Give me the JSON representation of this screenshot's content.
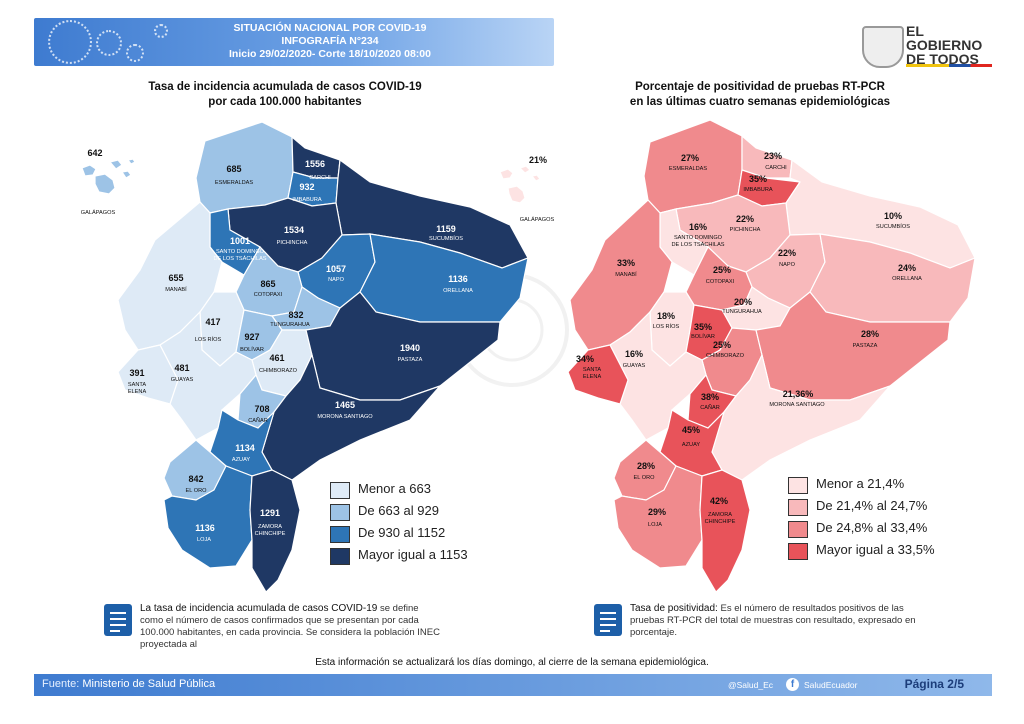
{
  "header": {
    "line1": "SITUACIÓN NACIONAL POR  COVID-19",
    "line2": "INFOGRAFÍA N°234",
    "line3": "Inicio 29/02/2020- Corte 18/10/2020 08:00"
  },
  "logo": {
    "line1": "EL",
    "line2": "GOBIERNO",
    "line3": "DE TODOS"
  },
  "left_map": {
    "title_line1": "Tasa de incidencia acumulada de casos COVID-19",
    "title_line2": "por cada 100.000 habitantes",
    "colors": {
      "c1": "#deeaf6",
      "c2": "#9dc3e6",
      "c3": "#2e75b6",
      "c4": "#1f3864"
    },
    "legend": [
      {
        "label": "Menor a 663",
        "color": "#deeaf6"
      },
      {
        "label": "De 663 al 929",
        "color": "#9dc3e6"
      },
      {
        "label": "De 930 al 1152",
        "color": "#2e75b6"
      },
      {
        "label": "Mayor igual a 1153",
        "color": "#1f3864"
      }
    ],
    "provinces": [
      {
        "name": "GALÁPAGOS",
        "value": "642"
      },
      {
        "name": "ESMERALDAS",
        "value": "685"
      },
      {
        "name": "CARCHI",
        "value": "1556"
      },
      {
        "name": "IMBABURA",
        "value": "932"
      },
      {
        "name": "PICHINCHA",
        "value": "1534"
      },
      {
        "name": "SUCUMBÍOS",
        "value": "1159"
      },
      {
        "name": "SANTO DOMINGO DE LOS TSÁCHILAS",
        "value": "1001"
      },
      {
        "name": "MANABÍ",
        "value": "655"
      },
      {
        "name": "COTOPAXI",
        "value": "865"
      },
      {
        "name": "NAPO",
        "value": "1057"
      },
      {
        "name": "ORELLANA",
        "value": "1136"
      },
      {
        "name": "TUNGURAHUA",
        "value": "832"
      },
      {
        "name": "LOS RÍOS",
        "value": "417"
      },
      {
        "name": "BOLÍVAR",
        "value": "927"
      },
      {
        "name": "CHIMBORAZO",
        "value": "461"
      },
      {
        "name": "PASTAZA",
        "value": "1940"
      },
      {
        "name": "GUAYAS",
        "value": "481"
      },
      {
        "name": "SANTA ELENA",
        "value": "391"
      },
      {
        "name": "CAÑAR",
        "value": "708"
      },
      {
        "name": "MORONA SANTIAGO",
        "value": "1465"
      },
      {
        "name": "AZUAY",
        "value": "1134"
      },
      {
        "name": "EL ORO",
        "value": "842"
      },
      {
        "name": "LOJA",
        "value": "1136"
      },
      {
        "name": "ZAMORA CHINCHIPE",
        "value": "1291"
      }
    ],
    "note": "La tasa de incidencia acumulada de casos COVID-19 se define como el número de casos confirmados que se presentan por cada 100.000 habitantes, en cada provincia. Se considera la población INEC proyectada al",
    "note_term": "La tasa de incidencia acumulada de casos COVID-19",
    "note_rest": " se define como el número de casos confirmados que se presentan por cada 100.000 habitantes, en cada provincia. Se considera la población INEC proyectada al"
  },
  "right_map": {
    "title_line1": "Porcentaje de positividad de pruebas RT-PCR",
    "title_line2": "en las últimas cuatro semanas epidemiológicas",
    "colors": {
      "c1": "#fde3e3",
      "c2": "#f8b9bb",
      "c3": "#f08a8d",
      "c4": "#e8535a"
    },
    "legend": [
      {
        "label": "Menor a 21,4%",
        "color": "#fde3e3"
      },
      {
        "label": "De 21,4% al 24,7%",
        "color": "#f8b9bb"
      },
      {
        "label": "De 24,8% al 33,4%",
        "color": "#f08a8d"
      },
      {
        "label": "Mayor igual a 33,5%",
        "color": "#e8535a"
      }
    ],
    "provinces": [
      {
        "name": "GALÁPAGOS",
        "value": "21%"
      },
      {
        "name": "ESMERALDAS",
        "value": "27%"
      },
      {
        "name": "CARCHI",
        "value": "23%"
      },
      {
        "name": "IMBABURA",
        "value": "35%"
      },
      {
        "name": "SANTO DOMINGO DE LOS TSÁCHILAS",
        "value": "16%"
      },
      {
        "name": "PICHINCHA",
        "value": "22%"
      },
      {
        "name": "SUCUMBÍOS",
        "value": "10%"
      },
      {
        "name": "MANABÍ",
        "value": "33%"
      },
      {
        "name": "NAPO",
        "value": "22%"
      },
      {
        "name": "ORELLANA",
        "value": "24%"
      },
      {
        "name": "COTOPAXI",
        "value": "25%"
      },
      {
        "name": "TUNGURAHUA",
        "value": "20%"
      },
      {
        "name": "LOS RÍOS",
        "value": "18%"
      },
      {
        "name": "BOLÍVAR",
        "value": "35%"
      },
      {
        "name": "PASTAZA",
        "value": "28%"
      },
      {
        "name": "SANTA ELENA",
        "value": "34%"
      },
      {
        "name": "GUAYAS",
        "value": "16%"
      },
      {
        "name": "CHIMBORAZO",
        "value": "25%"
      },
      {
        "name": "MORONA SANTIAGO",
        "value": "21,36%"
      },
      {
        "name": "CAÑAR",
        "value": "38%"
      },
      {
        "name": "AZUAY",
        "value": "45%"
      },
      {
        "name": "EL ORO",
        "value": "28%"
      },
      {
        "name": "LOJA",
        "value": "29%"
      },
      {
        "name": "ZAMORA CHINCHIPE",
        "value": "42%"
      }
    ],
    "note_term": "Tasa de positividad:",
    "note_rest": " Es el número de resultados positivos de las pruebas RT-PCR del total de muestras con resultado, expresado en porcentaje."
  },
  "footer_note": "Esta información se actualizará los días domingo, al cierre de la semana epidemiológica.",
  "footer": {
    "source_label": "Fuente:",
    "source_value": "Ministerio de Salud Pública",
    "twitter": "@Salud_Ec",
    "facebook": "SaludEcuador",
    "page": "Página 2/5"
  }
}
